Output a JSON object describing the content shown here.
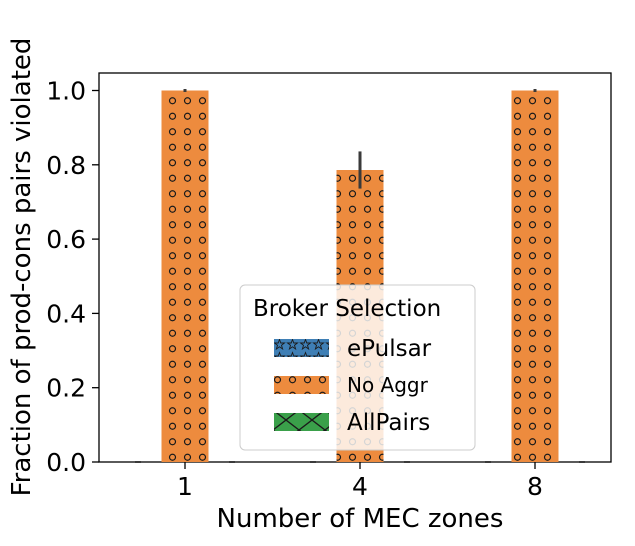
{
  "chart_data": {
    "type": "bar",
    "title": "",
    "xlabel": "Number of MEC zones",
    "ylabel": "Fraction of prod-cons pairs violated",
    "categories": [
      "1",
      "4",
      "8"
    ],
    "ylim": [
      0,
      1.05
    ],
    "yticks": [
      "0.0",
      "0.2",
      "0.4",
      "0.6",
      "0.8",
      "1.0"
    ],
    "ytick_values": [
      0,
      0.2,
      0.4,
      0.6,
      0.8,
      1.0
    ],
    "grid": false,
    "legend_placement": "lower-center",
    "legend_title": "Broker Selection",
    "series": [
      {
        "name": "ePulsar",
        "values": [
          0,
          0,
          0
        ],
        "errors": [
          0,
          0,
          0
        ],
        "color": "#3f7fb5",
        "hatch": "stars"
      },
      {
        "name": "No Aggr",
        "values": [
          1.0,
          0.786,
          1.0
        ],
        "errors": [
          0,
          0.05,
          0
        ],
        "color": "#ed8b3e",
        "hatch": "circles"
      },
      {
        "name": "AllPairs",
        "values": [
          0,
          0,
          0
        ],
        "errors": [
          0,
          0,
          0
        ],
        "color": "#3aa04a",
        "hatch": "cross"
      }
    ]
  }
}
